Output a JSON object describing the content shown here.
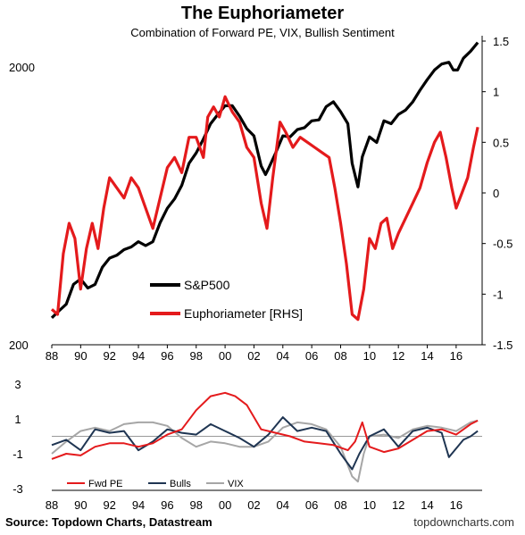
{
  "title": "The Euphoriameter",
  "subtitle": "Combination of Forward PE, VIX, Bullish Sentiment",
  "source": "Source: Topdown Charts, Datastream",
  "site": "topdowncharts.com",
  "colors": {
    "spx": "#000000",
    "euph": "#e41a1c",
    "fwdpe": "#e41a1c",
    "bulls": "#1f3552",
    "vix": "#a6a6a6",
    "grid": "#999999"
  },
  "chart_data": [
    {
      "type": "line",
      "x_ticks": [
        "88",
        "90",
        "92",
        "94",
        "96",
        "98",
        "00",
        "02",
        "04",
        "06",
        "08",
        "10",
        "12",
        "14",
        "16"
      ],
      "y_left": {
        "scale": "log",
        "ticks": [
          "2000",
          "200"
        ]
      },
      "y_right": {
        "ticks": [
          "1.5",
          "1",
          "0.5",
          "0",
          "-0.5",
          "-1",
          "-1.5"
        ],
        "ylim": [
          -1.5,
          1.5
        ]
      },
      "series": [
        {
          "name": "S&P500",
          "axis": "left",
          "points": [
            [
              1988.0,
              250
            ],
            [
              1988.5,
              265
            ],
            [
              1989.0,
              280
            ],
            [
              1989.5,
              330
            ],
            [
              1990.0,
              345
            ],
            [
              1990.5,
              320
            ],
            [
              1991.0,
              330
            ],
            [
              1991.5,
              380
            ],
            [
              1992.0,
              410
            ],
            [
              1992.5,
              420
            ],
            [
              1993.0,
              440
            ],
            [
              1993.5,
              450
            ],
            [
              1994.0,
              470
            ],
            [
              1994.5,
              455
            ],
            [
              1995.0,
              470
            ],
            [
              1995.5,
              550
            ],
            [
              1996.0,
              620
            ],
            [
              1996.5,
              670
            ],
            [
              1997.0,
              750
            ],
            [
              1997.5,
              900
            ],
            [
              1998.0,
              980
            ],
            [
              1998.5,
              1100
            ],
            [
              1999.0,
              1250
            ],
            [
              1999.5,
              1350
            ],
            [
              2000.0,
              1450
            ],
            [
              2000.5,
              1450
            ],
            [
              2001.0,
              1330
            ],
            [
              2001.5,
              1200
            ],
            [
              2002.0,
              1130
            ],
            [
              2002.5,
              880
            ],
            [
              2002.8,
              820
            ],
            [
              2003.0,
              860
            ],
            [
              2003.5,
              980
            ],
            [
              2004.0,
              1130
            ],
            [
              2004.5,
              1120
            ],
            [
              2005.0,
              1190
            ],
            [
              2005.5,
              1210
            ],
            [
              2006.0,
              1280
            ],
            [
              2006.5,
              1290
            ],
            [
              2007.0,
              1440
            ],
            [
              2007.5,
              1500
            ],
            [
              2008.0,
              1380
            ],
            [
              2008.5,
              1250
            ],
            [
              2008.8,
              900
            ],
            [
              2009.2,
              740
            ],
            [
              2009.5,
              950
            ],
            [
              2010.0,
              1120
            ],
            [
              2010.5,
              1070
            ],
            [
              2011.0,
              1280
            ],
            [
              2011.5,
              1250
            ],
            [
              2012.0,
              1350
            ],
            [
              2012.5,
              1400
            ],
            [
              2013.0,
              1500
            ],
            [
              2013.5,
              1650
            ],
            [
              2014.0,
              1800
            ],
            [
              2014.5,
              1950
            ],
            [
              2015.0,
              2050
            ],
            [
              2015.5,
              2080
            ],
            [
              2015.8,
              1950
            ],
            [
              2016.1,
              1950
            ],
            [
              2016.5,
              2150
            ],
            [
              2017.0,
              2280
            ],
            [
              2017.5,
              2450
            ]
          ]
        },
        {
          "name": "Euphoriameter [RHS]",
          "axis": "right",
          "points": [
            [
              1988.0,
              -1.15
            ],
            [
              1988.4,
              -1.2
            ],
            [
              1988.8,
              -0.6
            ],
            [
              1989.2,
              -0.3
            ],
            [
              1989.6,
              -0.45
            ],
            [
              1990.0,
              -0.95
            ],
            [
              1990.4,
              -0.55
            ],
            [
              1990.8,
              -0.3
            ],
            [
              1991.2,
              -0.55
            ],
            [
              1991.6,
              -0.15
            ],
            [
              1992.0,
              0.15
            ],
            [
              1992.5,
              0.05
            ],
            [
              1993.0,
              -0.05
            ],
            [
              1993.5,
              0.15
            ],
            [
              1994.0,
              0.05
            ],
            [
              1994.5,
              -0.15
            ],
            [
              1995.0,
              -0.35
            ],
            [
              1995.5,
              -0.05
            ],
            [
              1996.0,
              0.25
            ],
            [
              1996.5,
              0.35
            ],
            [
              1997.0,
              0.2
            ],
            [
              1997.5,
              0.55
            ],
            [
              1998.0,
              0.55
            ],
            [
              1998.5,
              0.35
            ],
            [
              1998.8,
              0.75
            ],
            [
              1999.2,
              0.85
            ],
            [
              1999.6,
              0.75
            ],
            [
              2000.0,
              0.95
            ],
            [
              2000.5,
              0.8
            ],
            [
              2001.0,
              0.7
            ],
            [
              2001.5,
              0.45
            ],
            [
              2002.0,
              0.35
            ],
            [
              2002.5,
              -0.1
            ],
            [
              2002.9,
              -0.35
            ],
            [
              2003.3,
              0.15
            ],
            [
              2003.8,
              0.7
            ],
            [
              2004.2,
              0.6
            ],
            [
              2004.7,
              0.45
            ],
            [
              2005.2,
              0.55
            ],
            [
              2005.7,
              0.5
            ],
            [
              2006.2,
              0.45
            ],
            [
              2006.7,
              0.4
            ],
            [
              2007.2,
              0.35
            ],
            [
              2007.6,
              0.05
            ],
            [
              2008.0,
              -0.3
            ],
            [
              2008.4,
              -0.7
            ],
            [
              2008.8,
              -1.2
            ],
            [
              2009.2,
              -1.25
            ],
            [
              2009.6,
              -0.95
            ],
            [
              2010.0,
              -0.45
            ],
            [
              2010.4,
              -0.55
            ],
            [
              2010.8,
              -0.3
            ],
            [
              2011.2,
              -0.25
            ],
            [
              2011.6,
              -0.55
            ],
            [
              2012.0,
              -0.4
            ],
            [
              2012.5,
              -0.25
            ],
            [
              2013.0,
              -0.1
            ],
            [
              2013.5,
              0.05
            ],
            [
              2014.0,
              0.3
            ],
            [
              2014.5,
              0.5
            ],
            [
              2014.9,
              0.6
            ],
            [
              2015.3,
              0.35
            ],
            [
              2015.7,
              0.05
            ],
            [
              2016.0,
              -0.15
            ],
            [
              2016.4,
              0.0
            ],
            [
              2016.8,
              0.15
            ],
            [
              2017.2,
              0.45
            ],
            [
              2017.5,
              0.65
            ]
          ]
        }
      ],
      "legend": [
        "S&P500",
        "Euphoriameter [RHS]"
      ]
    },
    {
      "type": "line",
      "x_ticks": [
        "88",
        "90",
        "92",
        "94",
        "96",
        "98",
        "00",
        "02",
        "04",
        "06",
        "08",
        "10",
        "12",
        "14",
        "16"
      ],
      "y_ticks": [
        "3",
        "1",
        "-1",
        "-3"
      ],
      "ylim": [
        -3,
        3
      ],
      "series": [
        {
          "name": "Fwd PE",
          "points": [
            [
              1988.0,
              -1.3
            ],
            [
              1989.0,
              -1.0
            ],
            [
              1990.0,
              -1.1
            ],
            [
              1991.0,
              -0.6
            ],
            [
              1992.0,
              -0.4
            ],
            [
              1993.0,
              -0.4
            ],
            [
              1994.0,
              -0.6
            ],
            [
              1995.0,
              -0.4
            ],
            [
              1996.0,
              0.1
            ],
            [
              1997.0,
              0.4
            ],
            [
              1998.0,
              1.5
            ],
            [
              1999.0,
              2.3
            ],
            [
              2000.0,
              2.5
            ],
            [
              2000.7,
              2.3
            ],
            [
              2001.5,
              1.8
            ],
            [
              2002.5,
              0.4
            ],
            [
              2003.5,
              0.2
            ],
            [
              2004.5,
              0.0
            ],
            [
              2005.5,
              -0.3
            ],
            [
              2006.5,
              -0.4
            ],
            [
              2007.5,
              -0.5
            ],
            [
              2008.5,
              -0.8
            ],
            [
              2009.0,
              -0.3
            ],
            [
              2009.5,
              0.8
            ],
            [
              2010.0,
              -0.6
            ],
            [
              2011.0,
              -0.9
            ],
            [
              2012.0,
              -0.7
            ],
            [
              2013.0,
              -0.2
            ],
            [
              2014.0,
              0.3
            ],
            [
              2015.0,
              0.4
            ],
            [
              2016.0,
              0.1
            ],
            [
              2017.0,
              0.7
            ],
            [
              2017.5,
              0.9
            ]
          ]
        },
        {
          "name": "Bulls",
          "points": [
            [
              1988.0,
              -0.5
            ],
            [
              1989.0,
              -0.2
            ],
            [
              1990.0,
              -0.8
            ],
            [
              1991.0,
              0.4
            ],
            [
              1992.0,
              0.2
            ],
            [
              1993.0,
              0.3
            ],
            [
              1994.0,
              -0.8
            ],
            [
              1995.0,
              -0.3
            ],
            [
              1996.0,
              0.4
            ],
            [
              1997.0,
              0.2
            ],
            [
              1998.0,
              0.1
            ],
            [
              1999.0,
              0.7
            ],
            [
              2000.0,
              0.3
            ],
            [
              2001.0,
              -0.1
            ],
            [
              2002.0,
              -0.6
            ],
            [
              2003.0,
              0.1
            ],
            [
              2004.0,
              1.1
            ],
            [
              2005.0,
              0.3
            ],
            [
              2006.0,
              0.5
            ],
            [
              2007.0,
              0.3
            ],
            [
              2008.0,
              -1.0
            ],
            [
              2008.8,
              -1.9
            ],
            [
              2009.3,
              -1.0
            ],
            [
              2010.0,
              0.0
            ],
            [
              2011.0,
              0.4
            ],
            [
              2012.0,
              -0.6
            ],
            [
              2013.0,
              0.3
            ],
            [
              2014.0,
              0.5
            ],
            [
              2015.0,
              0.2
            ],
            [
              2015.5,
              -1.2
            ],
            [
              2016.0,
              -0.7
            ],
            [
              2016.5,
              -0.2
            ],
            [
              2017.0,
              0.0
            ],
            [
              2017.5,
              0.3
            ]
          ]
        },
        {
          "name": "VIX",
          "points": [
            [
              1988.0,
              -1.0
            ],
            [
              1989.0,
              -0.3
            ],
            [
              1990.0,
              0.3
            ],
            [
              1991.0,
              0.5
            ],
            [
              1992.0,
              0.3
            ],
            [
              1993.0,
              0.7
            ],
            [
              1994.0,
              0.8
            ],
            [
              1995.0,
              0.8
            ],
            [
              1996.0,
              0.6
            ],
            [
              1997.0,
              -0.1
            ],
            [
              1998.0,
              -0.6
            ],
            [
              1999.0,
              -0.3
            ],
            [
              2000.0,
              -0.4
            ],
            [
              2001.0,
              -0.6
            ],
            [
              2002.0,
              -0.6
            ],
            [
              2003.0,
              -0.3
            ],
            [
              2004.0,
              0.5
            ],
            [
              2005.0,
              0.8
            ],
            [
              2006.0,
              0.7
            ],
            [
              2007.0,
              0.4
            ],
            [
              2008.0,
              -0.6
            ],
            [
              2008.8,
              -2.3
            ],
            [
              2009.2,
              -2.6
            ],
            [
              2009.6,
              -1.0
            ],
            [
              2010.0,
              0.0
            ],
            [
              2011.0,
              0.1
            ],
            [
              2012.0,
              -0.1
            ],
            [
              2013.0,
              0.4
            ],
            [
              2014.0,
              0.6
            ],
            [
              2015.0,
              0.5
            ],
            [
              2016.0,
              0.3
            ],
            [
              2017.0,
              0.8
            ],
            [
              2017.5,
              0.9
            ]
          ]
        }
      ],
      "legend": [
        "Fwd PE",
        "Bulls",
        "VIX"
      ]
    }
  ]
}
